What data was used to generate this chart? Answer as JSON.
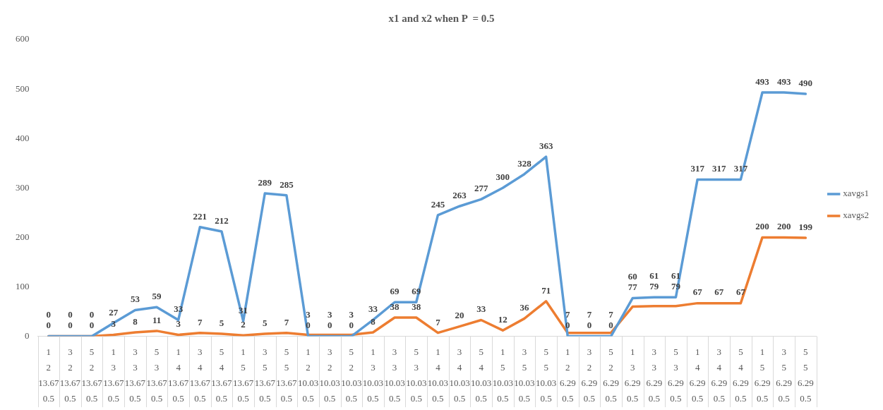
{
  "chart_data": {
    "type": "line",
    "title": "x1 and x2 when P  = 0.5",
    "categories": [
      "1\n2\n13.67\n0.5",
      "3\n2\n13.67\n0.5",
      "5\n2\n13.67\n0.5",
      "1\n3\n13.67\n0.5",
      "3\n3\n13.67\n0.5",
      "5\n3\n13.67\n0.5",
      "1\n4\n13.67\n0.5",
      "3\n4\n13.67\n0.5",
      "5\n4\n13.67\n0.5",
      "1\n5\n13.67\n0.5",
      "3\n5\n13.67\n0.5",
      "5\n5\n13.67\n0.5",
      "1\n2\n10.03\n0.5",
      "3\n2\n10.03\n0.5",
      "5\n2\n10.03\n0.5",
      "1\n3\n10.03\n0.5",
      "3\n3\n10.03\n0.5",
      "5\n3\n10.03\n0.5",
      "1\n4\n10.03\n0.5",
      "3\n4\n10.03\n0.5",
      "5\n4\n10.03\n0.5",
      "1\n5\n10.03\n0.5",
      "3\n5\n10.03\n0.5",
      "5\n5\n10.03\n0.5",
      "1\n2\n6.29\n0.5",
      "3\n2\n6.29\n0.5",
      "5\n2\n6.29\n0.5",
      "1\n3\n6.29\n0.5",
      "3\n3\n6.29\n0.5",
      "5\n3\n6.29\n0.5",
      "1\n4\n6.29\n0.5",
      "3\n4\n6.29\n0.5",
      "5\n4\n6.29\n0.5",
      "1\n5\n6.29\n0.5",
      "3\n5\n6.29\n0.5",
      "5\n5\n6.29\n0.5"
    ],
    "series": [
      {
        "name": "xavgs1",
        "color": "#5b9bd5",
        "values": [
          0,
          0,
          0,
          27,
          53,
          59,
          33,
          221,
          212,
          31,
          289,
          285,
          0,
          0,
          0,
          33,
          69,
          69,
          245,
          263,
          277,
          300,
          328,
          363,
          0,
          0,
          0,
          77,
          79,
          79,
          317,
          317,
          317,
          493,
          493,
          490
        ]
      },
      {
        "name": "xavgs2",
        "color": "#ed7d31",
        "values": [
          0,
          0,
          0,
          3,
          8,
          11,
          3,
          7,
          5,
          2,
          5,
          7,
          3,
          3,
          3,
          8,
          38,
          38,
          7,
          20,
          33,
          12,
          36,
          71,
          7,
          7,
          7,
          60,
          61,
          61,
          67,
          67,
          67,
          200,
          200,
          199
        ]
      }
    ],
    "ylim": [
      0,
      600
    ],
    "yticks": [
      0,
      100,
      200,
      300,
      400,
      500,
      600
    ],
    "grid": false,
    "legend": "right",
    "marker": "none",
    "line_style": "solid",
    "data_labels": true
  }
}
